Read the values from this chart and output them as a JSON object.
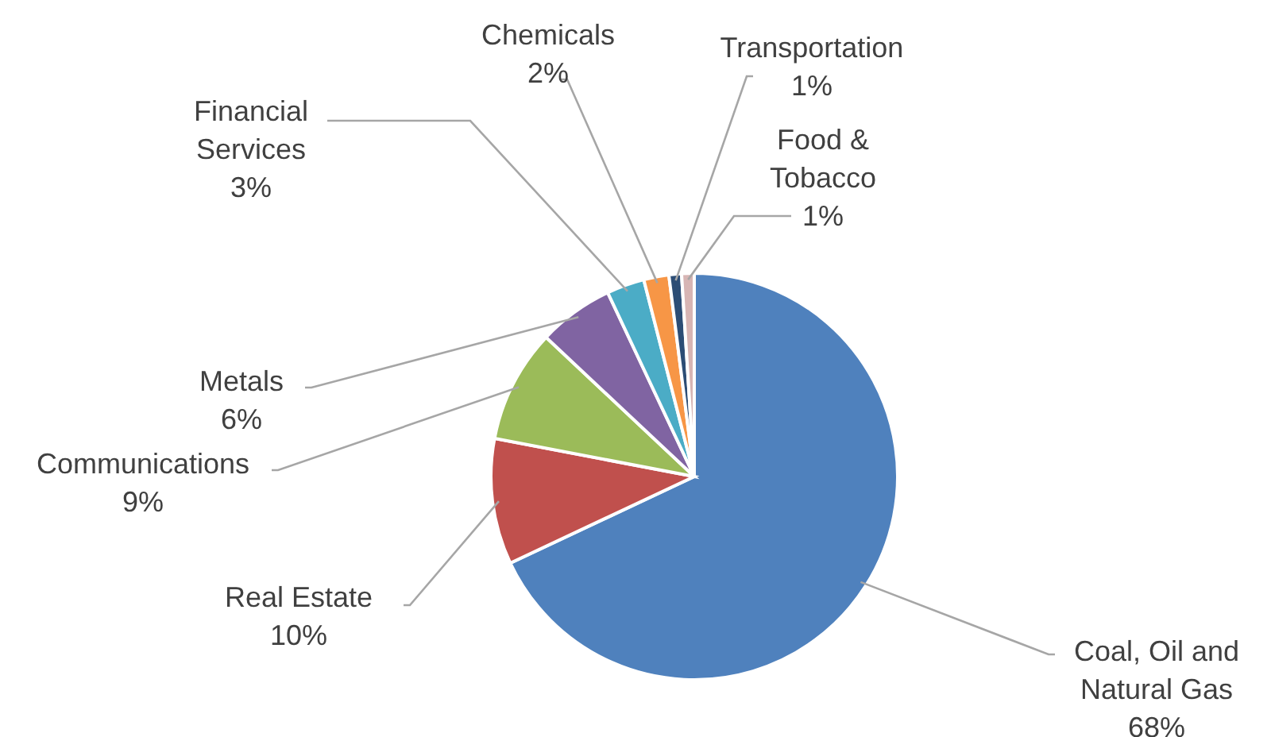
{
  "chart_data": {
    "type": "pie",
    "categories": [
      "Coal, Oil and Natural Gas",
      "Real Estate",
      "Communications",
      "Metals",
      "Financial Services",
      "Chemicals",
      "Transportation",
      "Food & Tobacco"
    ],
    "values": [
      68,
      10,
      9,
      6,
      3,
      2,
      1,
      1
    ],
    "colors": [
      "#4f81bd",
      "#c0504d",
      "#9bbb59",
      "#8064a2",
      "#4bacc6",
      "#f79646",
      "#2c4d75",
      "#d7b5b4"
    ],
    "value_labels": [
      "68%",
      "10%",
      "9%",
      "6%",
      "3%",
      "2%",
      "1%",
      "1%"
    ]
  }
}
